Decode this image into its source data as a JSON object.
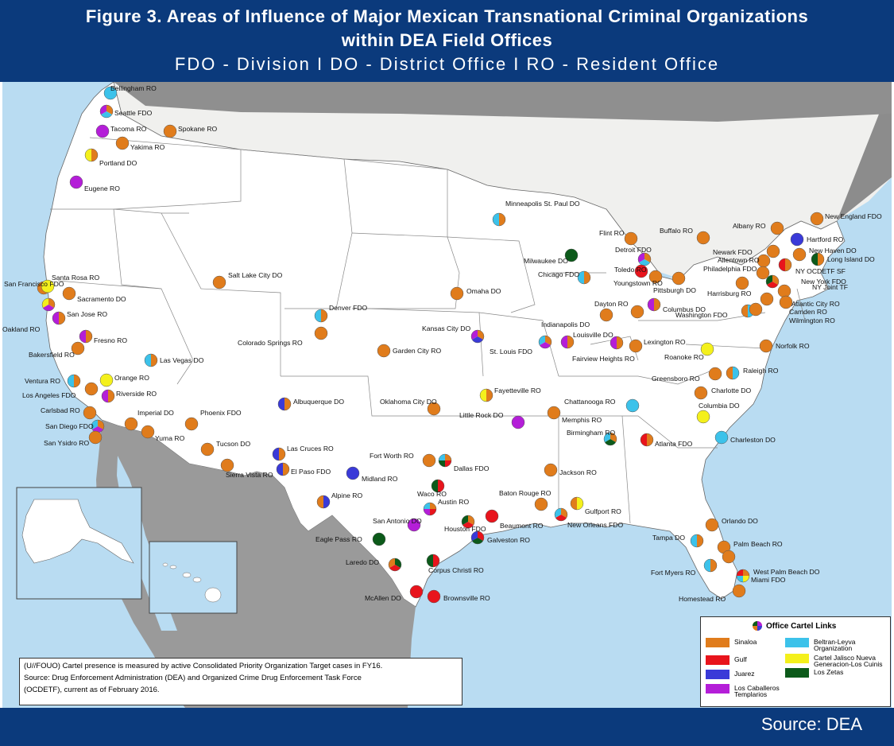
{
  "header": {
    "title_line1": "Figure 3.  Areas of Influence of Major Mexican Transnational Criminal Organizations",
    "title_line2": "within DEA Field Offices",
    "subtitle": "FDO - Division   I   DO - District Office   I   RO - Resident Office"
  },
  "footer": {
    "source": "Source:  DEA"
  },
  "note": {
    "line1": "(U//FOUO) Cartel presence is measured by active Consolidated Priority Organization Target cases in FY16.",
    "line2": "Source: Drug Enforcement Administration (DEA) and Organized Crime Drug Enforcement Task Force",
    "line3": "(OCDETF), current as of February 2016."
  },
  "legend": {
    "title": "Office Cartel Links",
    "items": [
      {
        "key": "sinaloa",
        "label": "Sinaloa",
        "color": "#e07c1c"
      },
      {
        "key": "gulf",
        "label": "Gulf",
        "color": "#e8141c"
      },
      {
        "key": "juarez",
        "label": "Juarez",
        "color": "#3a3ad8"
      },
      {
        "key": "caballeros",
        "label": "Los Caballeros Templarios",
        "color": "#b41ed8"
      },
      {
        "key": "beltran",
        "label": "Beltran-Leyva Organization",
        "color": "#3cc2ea"
      },
      {
        "key": "jalisco",
        "label": "Cartel Jalisco Nueva Generacion-Los Cuinis",
        "color": "#f4f01c"
      },
      {
        "key": "zetas",
        "label": "Los Zetas",
        "color": "#0c5a1a"
      }
    ]
  },
  "offices": [
    {
      "name": "Bellingham RO",
      "c": [
        "beltran"
      ]
    },
    {
      "name": "Seattle FDO",
      "c": [
        "sinaloa",
        "beltran",
        "caballeros"
      ]
    },
    {
      "name": "Tacoma RO",
      "c": [
        "caballeros"
      ]
    },
    {
      "name": "Spokane RO",
      "c": [
        "sinaloa"
      ]
    },
    {
      "name": "Yakima RO",
      "c": [
        "sinaloa"
      ]
    },
    {
      "name": "Portland DO",
      "c": [
        "sinaloa",
        "jalisco"
      ]
    },
    {
      "name": "Eugene RO",
      "c": [
        "caballeros"
      ]
    },
    {
      "name": "Santa Rosa RO",
      "c": [
        "sinaloa"
      ]
    },
    {
      "name": "San Francisco FDO",
      "c": [
        "jalisco"
      ]
    },
    {
      "name": "Sacramento DO",
      "c": [
        "sinaloa"
      ]
    },
    {
      "name": "San Jose RO",
      "c": [
        "sinaloa",
        "caballeros"
      ]
    },
    {
      "name": "Oakland RO",
      "c": [
        "sinaloa",
        "caballeros",
        "jalisco"
      ]
    },
    {
      "name": "Fresno RO",
      "c": [
        "sinaloa",
        "caballeros"
      ]
    },
    {
      "name": "Bakersfield RO",
      "c": [
        "sinaloa"
      ]
    },
    {
      "name": "Ventura RO",
      "c": [
        "sinaloa",
        "beltran"
      ]
    },
    {
      "name": "Los Angeles FDO",
      "c": [
        "sinaloa"
      ]
    },
    {
      "name": "Carlsbad RO",
      "c": [
        "sinaloa"
      ]
    },
    {
      "name": "San Diego FDO",
      "c": [
        "sinaloa",
        "caballeros",
        "beltran"
      ]
    },
    {
      "name": "San Ysidro RO",
      "c": [
        "sinaloa"
      ]
    },
    {
      "name": "Orange RO",
      "c": [
        "jalisco"
      ]
    },
    {
      "name": "Riverside RO",
      "c": [
        "sinaloa",
        "caballeros"
      ]
    },
    {
      "name": "Imperial DO",
      "c": [
        "sinaloa"
      ]
    },
    {
      "name": "Yuma RO",
      "c": [
        "sinaloa"
      ]
    },
    {
      "name": "Las Vegas DO",
      "c": [
        "sinaloa",
        "beltran"
      ]
    },
    {
      "name": "Phoenix FDO",
      "c": [
        "sinaloa"
      ]
    },
    {
      "name": "Tucson DO",
      "c": [
        "sinaloa"
      ]
    },
    {
      "name": "Sierra Vista RO",
      "c": [
        "sinaloa"
      ]
    },
    {
      "name": "Salt Lake City DO",
      "c": [
        "sinaloa"
      ]
    },
    {
      "name": "Denver FDO",
      "c": [
        "sinaloa",
        "beltran"
      ]
    },
    {
      "name": "Colorado Springs RO",
      "c": [
        "sinaloa"
      ]
    },
    {
      "name": "Albuquerque DO",
      "c": [
        "sinaloa",
        "juarez"
      ]
    },
    {
      "name": "Las Cruces RO",
      "c": [
        "sinaloa",
        "juarez"
      ]
    },
    {
      "name": "El Paso FDO",
      "c": [
        "sinaloa",
        "juarez"
      ]
    },
    {
      "name": "Midland RO",
      "c": [
        "juarez"
      ]
    },
    {
      "name": "Alpine RO",
      "c": [
        "juarez",
        "sinaloa"
      ]
    },
    {
      "name": "Minneapolis St. Paul DO",
      "c": [
        "sinaloa",
        "beltran"
      ]
    },
    {
      "name": "Omaha DO",
      "c": [
        "sinaloa"
      ]
    },
    {
      "name": "Kansas City DO",
      "c": [
        "sinaloa",
        "juarez",
        "caballeros"
      ]
    },
    {
      "name": "Garden City RO",
      "c": [
        "sinaloa"
      ]
    },
    {
      "name": "Oklahoma City DO",
      "c": [
        "sinaloa"
      ]
    },
    {
      "name": "Fort Worth RO",
      "c": [
        "sinaloa"
      ]
    },
    {
      "name": "Dallas FDO",
      "c": [
        "sinaloa",
        "gulf",
        "zetas",
        "beltran"
      ]
    },
    {
      "name": "Waco RO",
      "c": [
        "gulf",
        "zetas"
      ]
    },
    {
      "name": "Austin RO",
      "c": [
        "sinaloa",
        "gulf",
        "caballeros",
        "beltran"
      ]
    },
    {
      "name": "San Antonio DO",
      "c": [
        "caballeros"
      ]
    },
    {
      "name": "Eagle Pass RO",
      "c": [
        "zetas"
      ]
    },
    {
      "name": "Laredo DO",
      "c": [
        "zetas",
        "gulf",
        "sinaloa"
      ]
    },
    {
      "name": "Houston FDO",
      "c": [
        "sinaloa",
        "gulf",
        "zetas"
      ]
    },
    {
      "name": "Beaumont RO",
      "c": [
        "gulf"
      ]
    },
    {
      "name": "Galveston RO",
      "c": [
        "gulf",
        "zetas",
        "juarez"
      ]
    },
    {
      "name": "Corpus Christi RO",
      "c": [
        "gulf",
        "zetas"
      ]
    },
    {
      "name": "McAllen DO",
      "c": [
        "gulf"
      ]
    },
    {
      "name": "Brownsville RO",
      "c": [
        "gulf"
      ]
    },
    {
      "name": "Milwaukee DO",
      "c": [
        "zetas"
      ]
    },
    {
      "name": "Chicago FDO",
      "c": [
        "sinaloa",
        "beltran"
      ]
    },
    {
      "name": "St. Louis FDO",
      "c": [
        "sinaloa",
        "caballeros",
        "beltran"
      ]
    },
    {
      "name": "Fairview Heights RO",
      "c": [
        "sinaloa",
        "caballeros"
      ]
    },
    {
      "name": "Little Rock DO",
      "c": [
        "caballeros"
      ]
    },
    {
      "name": "Fayetteville RO",
      "c": [
        "sinaloa",
        "jalisco"
      ]
    },
    {
      "name": "Memphis RO",
      "c": [
        "sinaloa"
      ]
    },
    {
      "name": "Jackson RO",
      "c": [
        "sinaloa"
      ]
    },
    {
      "name": "Baton Rouge RO",
      "c": [
        "sinaloa"
      ]
    },
    {
      "name": "New Orleans FDO",
      "c": [
        "sinaloa",
        "gulf",
        "beltran"
      ]
    },
    {
      "name": "Gulfport RO",
      "c": [
        "jalisco",
        "sinaloa"
      ]
    },
    {
      "name": "Birmingham RO",
      "c": [
        "sinaloa",
        "zetas",
        "beltran"
      ]
    },
    {
      "name": "Chattanooga RO",
      "c": [
        "beltran"
      ]
    },
    {
      "name": "Atlanta FDO",
      "c": [
        "sinaloa",
        "gulf"
      ]
    },
    {
      "name": "Flint RO",
      "c": [
        "sinaloa"
      ]
    },
    {
      "name": "Detroit FDO",
      "c": [
        "sinaloa",
        "beltran",
        "caballeros"
      ]
    },
    {
      "name": "Toledo RO",
      "c": [
        "gulf"
      ]
    },
    {
      "name": "Louisville DO",
      "c": [
        "sinaloa",
        "caballeros"
      ]
    },
    {
      "name": "Indianapolis DO",
      "c": [
        "sinaloa"
      ]
    },
    {
      "name": "Dayton RO",
      "c": [
        "sinaloa"
      ]
    },
    {
      "name": "Columbus DO",
      "c": [
        "sinaloa",
        "caballeros"
      ]
    },
    {
      "name": "Youngstown RO",
      "c": [
        "sinaloa"
      ]
    },
    {
      "name": "Lexington RO",
      "c": [
        "sinaloa"
      ]
    },
    {
      "name": "Buffalo RO",
      "c": [
        "sinaloa"
      ]
    },
    {
      "name": "Pittsburgh DO",
      "c": [
        "sinaloa"
      ]
    },
    {
      "name": "Harrisburg RO",
      "c": [
        "sinaloa"
      ]
    },
    {
      "name": "Washington FDO",
      "c": [
        "beltran",
        "sinaloa"
      ]
    },
    {
      "name": "Roanoke RO",
      "c": [
        "jalisco"
      ]
    },
    {
      "name": "Norfolk RO",
      "c": [
        "sinaloa"
      ]
    },
    {
      "name": "Greensboro RO",
      "c": [
        "sinaloa"
      ]
    },
    {
      "name": "Raleigh RO",
      "c": [
        "beltran",
        "sinaloa"
      ]
    },
    {
      "name": "Charlotte DO",
      "c": [
        "sinaloa"
      ]
    },
    {
      "name": "Columbia DO",
      "c": [
        "jalisco"
      ]
    },
    {
      "name": "Charleston DO",
      "c": [
        "beltran"
      ]
    },
    {
      "name": "Albany RO",
      "c": [
        "sinaloa"
      ]
    },
    {
      "name": "New England FDO",
      "c": [
        "sinaloa"
      ]
    },
    {
      "name": "Hartford RO",
      "c": [
        "juarez"
      ]
    },
    {
      "name": "New Haven DO",
      "c": [
        "sinaloa"
      ]
    },
    {
      "name": "Long Island DO",
      "c": [
        "sinaloa",
        "zetas"
      ]
    },
    {
      "name": "Newark FDO",
      "c": [
        "sinaloa"
      ]
    },
    {
      "name": "Allentown RO",
      "c": [
        "sinaloa"
      ]
    },
    {
      "name": "Philadelphia FDO",
      "c": [
        "sinaloa"
      ]
    },
    {
      "name": "NY OCDETF SF",
      "c": [
        "sinaloa",
        "gulf"
      ]
    },
    {
      "name": "New York FDO",
      "c": [
        "sinaloa",
        "gulf",
        "zetas"
      ]
    },
    {
      "name": "NY Joint TF",
      "c": [
        "sinaloa"
      ]
    },
    {
      "name": "Atlantic City RO",
      "c": [
        "sinaloa"
      ]
    },
    {
      "name": "Camden RO",
      "c": [
        "sinaloa"
      ]
    },
    {
      "name": "Wilmington RO",
      "c": [
        "sinaloa"
      ]
    },
    {
      "name": "Orlando DO",
      "c": [
        "sinaloa"
      ]
    },
    {
      "name": "Tampa DO",
      "c": [
        "sinaloa",
        "beltran"
      ]
    },
    {
      "name": "Palm Beach RO",
      "c": [
        "sinaloa"
      ]
    },
    {
      "name": "West Palm Beach DO",
      "c": [
        "sinaloa"
      ]
    },
    {
      "name": "Fort Myers RO",
      "c": [
        "sinaloa",
        "beltran"
      ]
    },
    {
      "name": "Miami FDO",
      "c": [
        "sinaloa",
        "jalisco",
        "beltran",
        "gulf"
      ]
    },
    {
      "name": "Homestead RO",
      "c": [
        "sinaloa"
      ]
    }
  ]
}
